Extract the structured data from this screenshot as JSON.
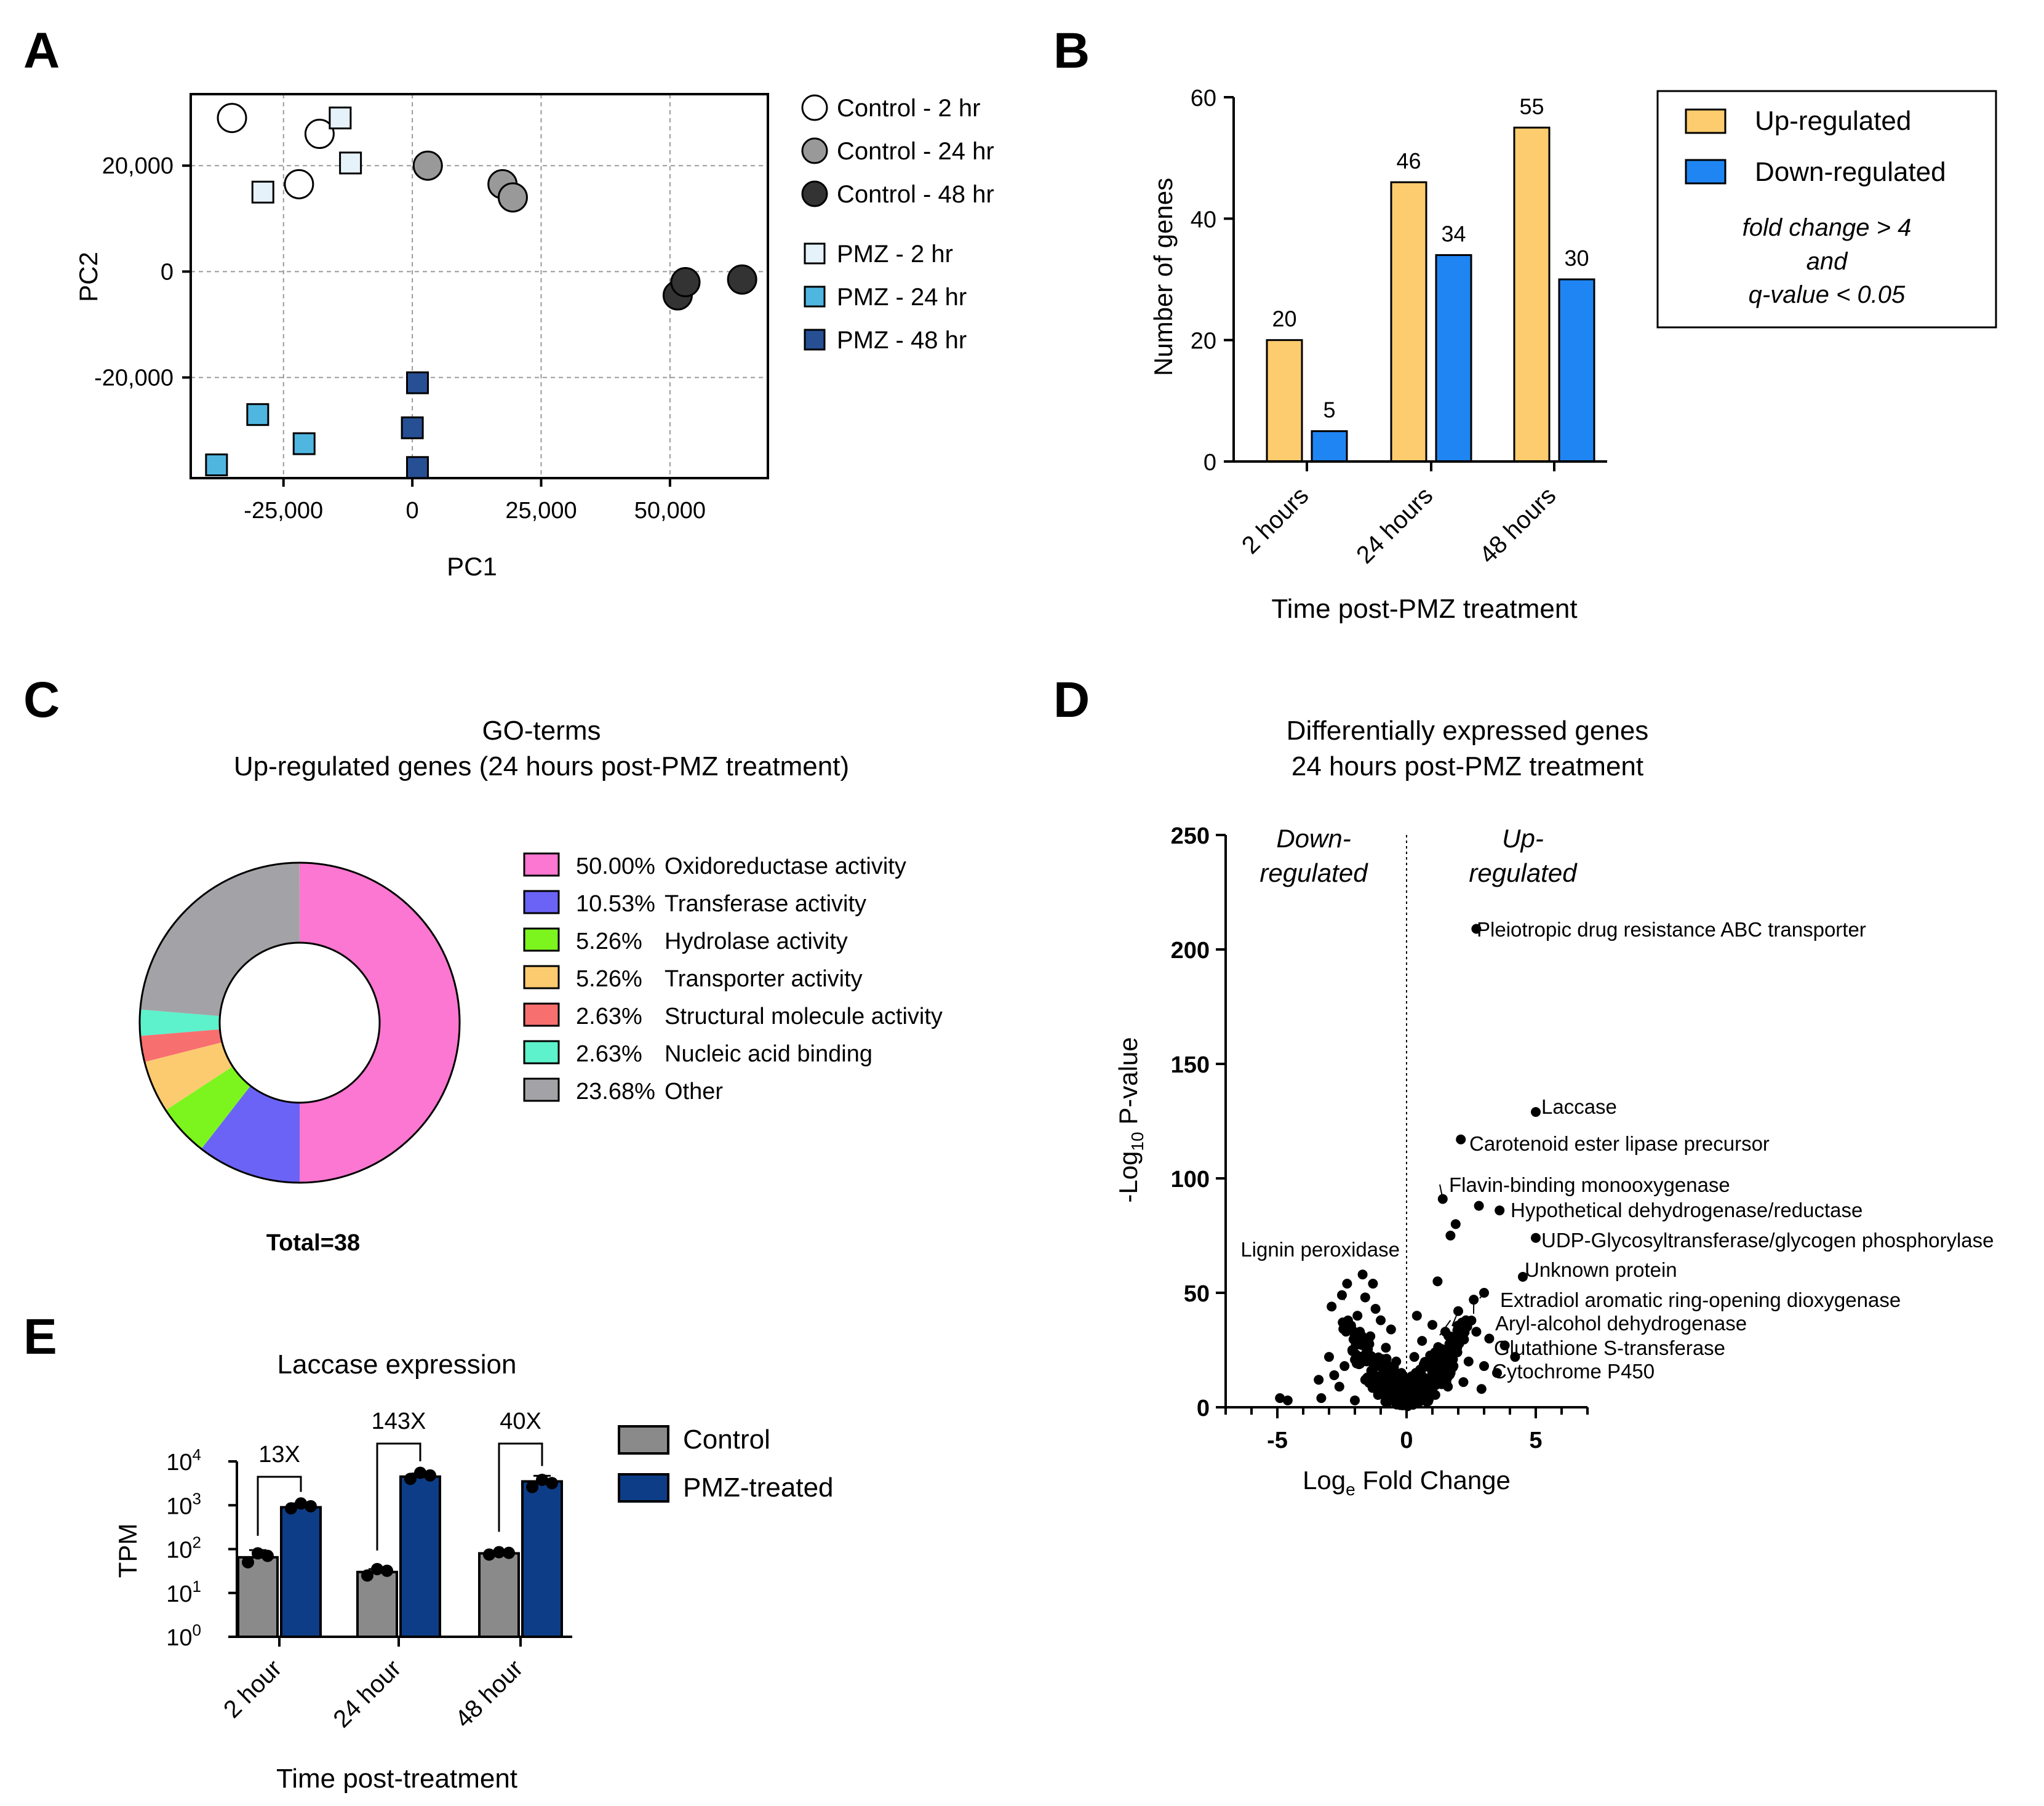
{
  "colors": {
    "ctrl2": "#ffffff",
    "ctrl24": "#999999",
    "ctrl48": "#333333",
    "pmz2": "#e6f2fa",
    "pmz24": "#4fb6e0",
    "pmz48": "#274f94",
    "up": "#fccc6e",
    "down": "#1f85f2",
    "control_bar": "#8a8a8a",
    "pmz_bar": "#0e3d87",
    "oxido": "#fb77d1",
    "transferase": "#6b63f5",
    "hydrolase": "#7cf51f",
    "transporter": "#fccb70",
    "structural": "#f86f6f",
    "nucleic": "#5df2cc",
    "other": "#a3a3a7"
  },
  "chart_data": [
    {
      "panel": "A",
      "type": "scatter",
      "xlabel": "PC1",
      "ylabel": "PC2",
      "xlim": [
        -43000,
        69000
      ],
      "ylim": [
        -39000,
        33500
      ],
      "xticks": [
        -25000,
        0,
        25000,
        50000
      ],
      "xtick_labels": [
        "-25,000",
        "0",
        "25,000",
        "50,000"
      ],
      "yticks": [
        -20000,
        0,
        20000
      ],
      "ytick_labels": [
        "-20,000",
        "0",
        "20,000"
      ],
      "grid": true,
      "legend_position": "right",
      "series": [
        {
          "name": "Control - 2 hr",
          "marker": "circle",
          "color": "#ffffff",
          "points": [
            [
              -35000,
              29000
            ],
            [
              -18000,
              26000
            ],
            [
              -22000,
              16500
            ]
          ]
        },
        {
          "name": "Control - 24 hr",
          "marker": "circle",
          "color": "#999999",
          "points": [
            [
              3000,
              20000
            ],
            [
              17500,
              16500
            ],
            [
              19500,
              14000
            ]
          ]
        },
        {
          "name": "Control - 48 hr",
          "marker": "circle",
          "color": "#333333",
          "points": [
            [
              51500,
              -4500
            ],
            [
              53000,
              -2000
            ],
            [
              64000,
              -1500
            ]
          ]
        },
        {
          "name": "PMZ - 2 hr",
          "marker": "square",
          "color": "#e6f2fa",
          "points": [
            [
              -14000,
              29000
            ],
            [
              -12000,
              20500
            ],
            [
              -29000,
              15000
            ]
          ]
        },
        {
          "name": "PMZ - 24 hr",
          "marker": "square",
          "color": "#4fb6e0",
          "points": [
            [
              -30000,
              -27000
            ],
            [
              -21000,
              -32500
            ],
            [
              -38000,
              -36500
            ]
          ]
        },
        {
          "name": "PMZ - 48 hr",
          "marker": "square",
          "color": "#274f94",
          "points": [
            [
              1000,
              -21000
            ],
            [
              0,
              -29500
            ],
            [
              1000,
              -37000
            ]
          ]
        }
      ]
    },
    {
      "panel": "B",
      "type": "bar",
      "categories": [
        "2 hours",
        "24 hours",
        "48 hours"
      ],
      "series": [
        {
          "name": "Up-regulated",
          "values": [
            20,
            46,
            55
          ]
        },
        {
          "name": "Down-regulated",
          "values": [
            5,
            34,
            30
          ]
        }
      ],
      "value_labels": [
        [
          "20",
          "46",
          "55"
        ],
        [
          "5",
          "34",
          "30"
        ]
      ],
      "xlabel": "Time post-PMZ treatment",
      "ylabel": "Number of genes",
      "ylim": [
        0,
        60
      ],
      "yticks": [
        0,
        20,
        40,
        60
      ],
      "ytick_labels": [
        "0",
        "20",
        "40",
        "60"
      ],
      "legend_position": "top-right",
      "legend_note": [
        "fold change > 4",
        "and",
        "q-value < 0.05"
      ]
    },
    {
      "panel": "C",
      "type": "pie",
      "title": [
        "GO-terms",
        "Up-regulated genes (24 hours post-PMZ treatment)"
      ],
      "donut": true,
      "slices": [
        {
          "pct": "50.00%",
          "label": "Oxidoreductase activity",
          "value": 50.0,
          "color": "#fb77d1"
        },
        {
          "pct": "10.53%",
          "label": "Transferase activity",
          "value": 10.53,
          "color": "#6b63f5"
        },
        {
          "pct": "5.26%",
          "label": "Hydrolase activity",
          "value": 5.26,
          "color": "#7cf51f"
        },
        {
          "pct": "5.26%",
          "label": "Transporter activity",
          "value": 5.26,
          "color": "#fccb70"
        },
        {
          "pct": "2.63%",
          "label": "Structural molecule activity",
          "value": 2.63,
          "color": "#f86f6f"
        },
        {
          "pct": "2.63%",
          "label": "Nucleic acid binding",
          "value": 2.63,
          "color": "#5df2cc"
        },
        {
          "pct": "23.68%",
          "label": "Other",
          "value": 23.68,
          "color": "#a3a3a7"
        }
      ],
      "total_label": "Total=38",
      "legend_position": "right"
    },
    {
      "panel": "D",
      "type": "scatter",
      "title": [
        "Differentially expressed genes",
        "24 hours post-PMZ treatment"
      ],
      "xlabel_main": "Log",
      "xlabel_sub": "e",
      "xlabel_rest": " Fold Change",
      "ylabel_main": "-Log",
      "ylabel_sub": "10",
      "ylabel_rest": " P-value",
      "xlim": [
        -7,
        7
      ],
      "ylim": [
        0,
        250
      ],
      "xticks": [
        -5,
        0,
        5
      ],
      "xtick_labels": [
        "-5",
        "0",
        "5"
      ],
      "yticks": [
        0,
        50,
        100,
        150,
        200,
        250
      ],
      "ytick_labels": [
        "0",
        "50",
        "100",
        "150",
        "200",
        "250"
      ],
      "region_labels": [
        [
          "Down-",
          "regulated"
        ],
        [
          "Up-",
          "regulated"
        ]
      ],
      "points": [
        [
          2.7,
          209
        ],
        [
          5.0,
          129
        ],
        [
          2.1,
          117
        ],
        [
          1.4,
          91
        ],
        [
          2.8,
          88
        ],
        [
          3.6,
          86
        ],
        [
          5.0,
          74
        ],
        [
          4.5,
          57
        ],
        [
          1.7,
          75
        ],
        [
          1.9,
          80
        ],
        [
          1.2,
          55
        ],
        [
          2.6,
          47
        ],
        [
          3.0,
          50
        ],
        [
          2.0,
          42
        ],
        [
          2.3,
          38
        ],
        [
          2.7,
          33
        ],
        [
          3.2,
          30
        ],
        [
          3.8,
          27
        ],
        [
          4.2,
          22
        ],
        [
          -2.3,
          54
        ],
        [
          -2.5,
          49
        ],
        [
          -2.9,
          44
        ],
        [
          -1.7,
          58
        ],
        [
          -1.3,
          54
        ],
        [
          -1.6,
          48
        ],
        [
          -1.2,
          43
        ],
        [
          -1.9,
          40
        ],
        [
          -1.0,
          38
        ],
        [
          -4.9,
          4
        ],
        [
          -4.6,
          3
        ],
        [
          -3.3,
          4
        ],
        [
          -2.8,
          14
        ],
        [
          -3.4,
          12
        ],
        [
          -0.6,
          34
        ],
        [
          -0.8,
          26
        ],
        [
          -1.4,
          31
        ],
        [
          -2.1,
          25
        ],
        [
          -0.4,
          20
        ],
        [
          0.3,
          22
        ],
        [
          0.6,
          29
        ],
        [
          1.0,
          36
        ],
        [
          1.5,
          33
        ],
        [
          1.8,
          27
        ],
        [
          0.9,
          18
        ],
        [
          1.3,
          14
        ],
        [
          2.4,
          20
        ],
        [
          3.0,
          18
        ],
        [
          3.5,
          15
        ],
        [
          0.4,
          40
        ],
        [
          -3.0,
          22
        ],
        [
          -2.4,
          18
        ],
        [
          -1.6,
          12
        ],
        [
          -0.3,
          9
        ],
        [
          0.2,
          6
        ],
        [
          -0.5,
          4
        ],
        [
          1.6,
          9
        ],
        [
          2.2,
          11
        ],
        [
          2.9,
          8
        ],
        [
          -1.1,
          6
        ],
        [
          -2.0,
          3
        ],
        [
          0.7,
          12
        ],
        [
          -0.2,
          15
        ],
        [
          0.1,
          11
        ],
        [
          1.1,
          24
        ],
        [
          -1.8,
          19
        ],
        [
          -2.6,
          9
        ]
      ],
      "annotations": [
        {
          "label": "Pleiotropic drug resistance ABC transporter",
          "x": 2.7,
          "y": 209
        },
        {
          "label": "Laccase",
          "x": 5.0,
          "y": 129
        },
        {
          "label": "Carotenoid ester lipase precursor",
          "x": 2.1,
          "y": 117
        },
        {
          "label": "Flavin-binding monooxygenase",
          "x": 1.4,
          "y": 91
        },
        {
          "label": "Hypothetical dehydrogenase/reductase",
          "x": 3.6,
          "y": 86
        },
        {
          "label": "UDP-Glycosyltransferase/glycogen phosphorylase",
          "x": 5.0,
          "y": 74
        },
        {
          "label": "Unknown protein",
          "x": 4.5,
          "y": 57
        },
        {
          "label": "Lignin peroxidase",
          "x": -2.5,
          "y": 49
        },
        {
          "label": "Extradiol aromatic ring-opening dioxygenase",
          "x": 3.0,
          "y": 50
        },
        {
          "label": "Aryl-alcohol dehydrogenase",
          "x": 2.6,
          "y": 47
        },
        {
          "label": "Glutathione S-transferase",
          "x": 2.0,
          "y": 42
        },
        {
          "label": "Cytochrome P450",
          "x": 1.7,
          "y": 38
        }
      ]
    },
    {
      "panel": "E",
      "type": "bar",
      "title": "Laccase expression",
      "categories": [
        "2 hour",
        "24 hour",
        "48 hour"
      ],
      "yscale": "log",
      "ylim": [
        1,
        10000
      ],
      "ytick_base": "10",
      "ytick_exponents": [
        "0",
        "1",
        "2",
        "3",
        "4"
      ],
      "ylabel": "TPM",
      "xlabel": "Time post-treatment",
      "series": [
        {
          "name": "Control",
          "values": [
            65,
            30,
            80
          ],
          "err": [
            30,
            5,
            8
          ],
          "points": [
            [
              50,
              80,
              70
            ],
            [
              25,
              35,
              32
            ],
            [
              75,
              85,
              82
            ]
          ]
        },
        {
          "name": "PMZ-treated",
          "values": [
            900,
            4500,
            3500
          ],
          "err": [
            200,
            800,
            1200
          ],
          "points": [
            [
              850,
              1100,
              950
            ],
            [
              4000,
              5500,
              4800
            ],
            [
              2600,
              3800,
              3200
            ]
          ]
        }
      ],
      "fold_labels": [
        "13X",
        "143X",
        "40X"
      ],
      "legend_position": "right"
    }
  ],
  "panel_letters": [
    "A",
    "B",
    "C",
    "D",
    "E"
  ]
}
